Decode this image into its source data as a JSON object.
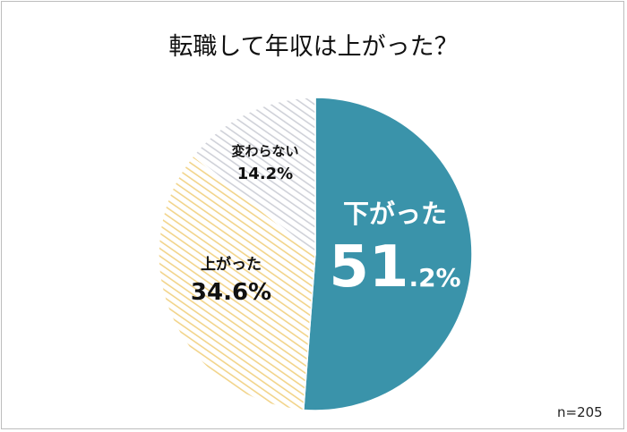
{
  "title": "転職して年収は上がった？",
  "n_note": "n=205",
  "chart_data": {
    "type": "pie",
    "title": "転職して年収は上がった？",
    "slices": [
      {
        "label": "下がった",
        "value": 51.2,
        "display_int": "51",
        "display_dec": ".2%",
        "color": "#3a93aa",
        "pattern": "solid"
      },
      {
        "label": "上がった",
        "value": 34.6,
        "display": "34.6%",
        "color": "#f2d48a",
        "pattern": "hatch"
      },
      {
        "label": "変わらない",
        "value": 14.2,
        "display": "14.2%",
        "color": "#c9cbd4",
        "pattern": "hatch"
      }
    ],
    "start_angle": "12 o'clock",
    "direction": "clockwise",
    "n": 205
  }
}
